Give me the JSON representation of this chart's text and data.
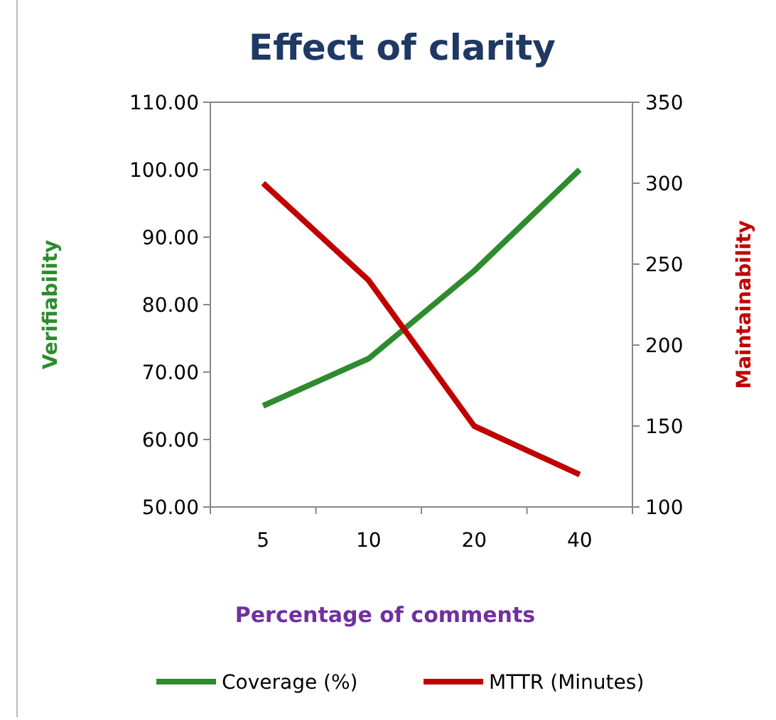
{
  "chart_data": {
    "type": "line",
    "title": "Effect of clarity",
    "xlabel": "Percentage of comments",
    "ylabel": "Verifiability",
    "y2label": "Maintainability",
    "categories": [
      "5",
      "10",
      "20",
      "40"
    ],
    "series": [
      {
        "name": "Coverage (%)",
        "color": "#2e8b2e",
        "values": [
          65,
          72,
          85,
          100
        ]
      },
      {
        "name": "MTTR (Minutes)",
        "color": "#c00000",
        "values": [
          300,
          240,
          150,
          120
        ],
        "axis": "y2"
      }
    ],
    "ylim": [
      50,
      110
    ],
    "yticks": [
      {
        "value": 50,
        "label": "50.00"
      },
      {
        "value": 60,
        "label": "60.00"
      },
      {
        "value": 70,
        "label": "70.00"
      },
      {
        "value": 80,
        "label": "80.00"
      },
      {
        "value": 90,
        "label": "90.00"
      },
      {
        "value": 100,
        "label": "100.00"
      },
      {
        "value": 110,
        "label": "110.00"
      }
    ],
    "y2lim": [
      100,
      350
    ],
    "y2ticks": [
      100,
      150,
      200,
      250,
      300,
      350
    ],
    "grid": false,
    "legend": "bottom",
    "marker": "none",
    "line_style": "solid"
  }
}
